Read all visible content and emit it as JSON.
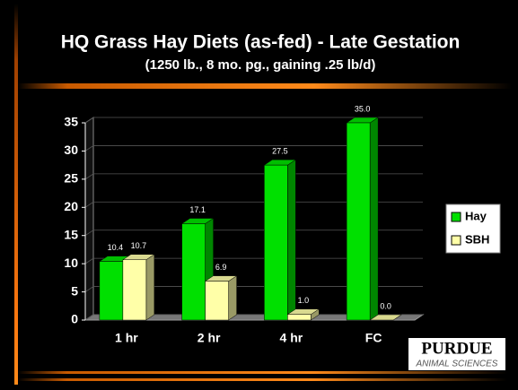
{
  "chart_data": {
    "type": "bar3d",
    "title": "HQ Grass Hay Diets (as-fed) - Late Gestation",
    "subtitle": "(1250 lb., 8 mo. pg., gaining .25 lb/d)",
    "categories": [
      "1 hr",
      "2 hr",
      "4 hr",
      "FC"
    ],
    "series": [
      {
        "name": "Hay",
        "color": "#00e000",
        "values": [
          10.4,
          17.1,
          27.5,
          35.0
        ],
        "value_labels": [
          "10.4",
          "17.1",
          "27.5",
          "35.0"
        ]
      },
      {
        "name": "SBH",
        "color": "#ffffa8",
        "values": [
          10.7,
          6.9,
          1.0,
          0.0
        ],
        "value_labels": [
          "10.7",
          "6.9",
          "1.0",
          "0.0"
        ]
      }
    ],
    "ylim": [
      0,
      35
    ],
    "yticks": [
      0,
      5,
      10,
      15,
      20,
      25,
      30,
      35
    ],
    "grid": true,
    "legend": "right",
    "logo": {
      "name": "PURDUE",
      "subtitle": "ANIMAL SCIENCES"
    }
  }
}
